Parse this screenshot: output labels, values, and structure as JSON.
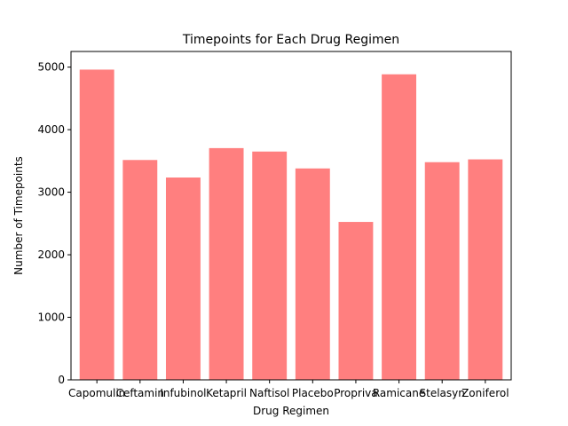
{
  "chart_data": {
    "type": "bar",
    "title": "Timepoints for Each Drug Regimen",
    "xlabel": "Drug Regimen",
    "ylabel": "Number of Timepoints",
    "categories": [
      "Capomulin",
      "Ceftamin",
      "Infubinol",
      "Ketapril",
      "Naftisol",
      "Placebo",
      "Propriva",
      "Ramicane",
      "Stelasyn",
      "Zoniferol"
    ],
    "values": [
      4960,
      3515,
      3235,
      3705,
      3650,
      3380,
      2525,
      4885,
      3480,
      3525
    ],
    "ylim": [
      0,
      5250
    ],
    "yticks": [
      0,
      1000,
      2000,
      3000,
      4000,
      5000
    ],
    "bar_color": "#ff7f7f",
    "grid": false,
    "legend": false
  }
}
